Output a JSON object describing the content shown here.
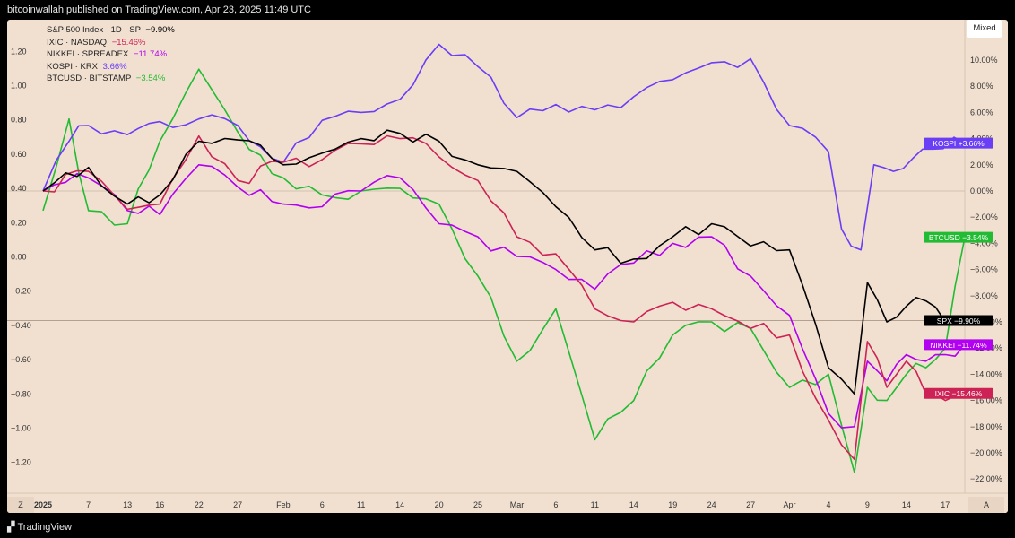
{
  "header": {
    "publisher": "bitcoinwallah published on TradingView.com, Apr 23, 2025 11:49 UTC"
  },
  "footer": {
    "brand": "TradingView"
  },
  "toolbar": {
    "mode": "Mixed",
    "z_label": "Z",
    "a_label": "A"
  },
  "chart_data": {
    "type": "line",
    "title": "",
    "background": "#f1e0d0",
    "x_tick_labels": [
      "2025",
      "7",
      "13",
      "16",
      "22",
      "27",
      "Feb",
      "6",
      "11",
      "14",
      "20",
      "25",
      "Mar",
      "6",
      "11",
      "14",
      "19",
      "24",
      "27",
      "Apr",
      "4",
      "9",
      "14",
      "17"
    ],
    "x_tick_index": [
      0,
      7,
      13,
      18,
      24,
      30,
      37,
      43,
      49,
      55,
      61,
      67,
      73,
      79,
      85,
      91,
      97,
      103,
      109,
      115,
      121,
      127,
      133,
      139
    ],
    "x_count": 143,
    "left_axis": {
      "ticks": [
        1.2,
        1.0,
        0.8,
        0.6,
        0.4,
        0.2,
        0.0,
        -0.2,
        -0.4,
        -0.6,
        -0.8,
        -1.0,
        -1.2
      ],
      "labels": [
        "1.20",
        "1.00",
        "0.80",
        "0.60",
        "0.40",
        "0.20",
        "0.00",
        "−0.20",
        "−0.40",
        "−0.60",
        "−0.80",
        "−1.00",
        "−1.20"
      ],
      "range": [
        -1.35,
        1.35
      ]
    },
    "right_axis": {
      "unit": "%",
      "ticks": [
        10,
        8,
        6,
        4,
        2,
        0,
        -2,
        -4,
        -6,
        -8,
        -10,
        -12,
        -14,
        -16,
        -18,
        -20,
        -22
      ],
      "labels": [
        "10.00%",
        "8.00%",
        "6.00%",
        "4.00%",
        "2.00%",
        "0.00%",
        "−2.00%",
        "−4.00%",
        "−6.00%",
        "−8.00%",
        "−10.00%",
        "−12.00%",
        "−14.00%",
        "−16.00%",
        "−18.00%",
        "−20.00%",
        "−22.00%"
      ]
    },
    "series": [
      {
        "name": "S&P 500 Index",
        "legend": "S&P 500 Index · 1D · SP",
        "change": "−9.90%",
        "tag": "SPX",
        "tag_value": "−9.90%",
        "color": "#000000",
        "points": [
          [
            0,
            0.0
          ],
          [
            7,
            1.8
          ],
          [
            13,
            -1.0
          ],
          [
            18,
            -0.3
          ],
          [
            24,
            3.8
          ],
          [
            30,
            3.9
          ],
          [
            37,
            2.0
          ],
          [
            43,
            2.9
          ],
          [
            49,
            4.0
          ],
          [
            55,
            4.4
          ],
          [
            61,
            3.8
          ],
          [
            67,
            2.0
          ],
          [
            73,
            1.5
          ],
          [
            79,
            -1.2
          ],
          [
            85,
            -4.5
          ],
          [
            91,
            -5.2
          ],
          [
            97,
            -3.5
          ],
          [
            103,
            -2.5
          ],
          [
            109,
            -4.2
          ],
          [
            115,
            -4.5
          ],
          [
            121,
            -13.5
          ],
          [
            125,
            -15.5
          ],
          [
            127,
            -7.0
          ],
          [
            130,
            -10.0
          ],
          [
            133,
            -8.8
          ],
          [
            136,
            -8.4
          ],
          [
            139,
            -10.0
          ],
          [
            142,
            -9.9
          ]
        ]
      },
      {
        "name": "IXIC",
        "legend": "IXIC · NASDAQ",
        "change": "−15.46%",
        "tag": "IXIC",
        "tag_value": "−15.46%",
        "color": "#cc2255",
        "points": [
          [
            0,
            0.0
          ],
          [
            7,
            1.5
          ],
          [
            13,
            -1.4
          ],
          [
            18,
            -1.0
          ],
          [
            24,
            4.2
          ],
          [
            30,
            0.8
          ],
          [
            37,
            2.2
          ],
          [
            43,
            2.4
          ],
          [
            49,
            3.6
          ],
          [
            55,
            4.0
          ],
          [
            61,
            2.6
          ],
          [
            67,
            0.8
          ],
          [
            73,
            -3.5
          ],
          [
            79,
            -4.8
          ],
          [
            85,
            -9.0
          ],
          [
            91,
            -10.0
          ],
          [
            97,
            -8.5
          ],
          [
            103,
            -9.0
          ],
          [
            109,
            -10.5
          ],
          [
            115,
            -11.0
          ],
          [
            121,
            -17.5
          ],
          [
            125,
            -20.5
          ],
          [
            127,
            -11.5
          ],
          [
            130,
            -15.0
          ],
          [
            133,
            -13.0
          ],
          [
            136,
            -15.5
          ],
          [
            139,
            -16.0
          ],
          [
            142,
            -15.46
          ]
        ]
      },
      {
        "name": "NIKKEI",
        "legend": "NIKKEI · SPREADEX",
        "change": "−11.74%",
        "tag": "NIKKEI",
        "tag_value": "−11.74%",
        "color": "#b200f0",
        "points": [
          [
            0,
            0.0
          ],
          [
            7,
            1.0
          ],
          [
            13,
            -1.5
          ],
          [
            18,
            -1.8
          ],
          [
            24,
            2.0
          ],
          [
            30,
            0.3
          ],
          [
            37,
            -1.0
          ],
          [
            43,
            -1.2
          ],
          [
            49,
            0.0
          ],
          [
            55,
            1.0
          ],
          [
            61,
            -2.5
          ],
          [
            67,
            -3.5
          ],
          [
            73,
            -5.0
          ],
          [
            79,
            -6.0
          ],
          [
            85,
            -7.5
          ],
          [
            91,
            -5.5
          ],
          [
            97,
            -4.0
          ],
          [
            103,
            -3.5
          ],
          [
            109,
            -6.5
          ],
          [
            115,
            -9.5
          ],
          [
            121,
            -17.0
          ],
          [
            125,
            -18.0
          ],
          [
            127,
            -13.0
          ],
          [
            130,
            -14.5
          ],
          [
            133,
            -12.5
          ],
          [
            136,
            -13.0
          ],
          [
            139,
            -12.5
          ],
          [
            142,
            -11.74
          ]
        ]
      },
      {
        "name": "KOSPI",
        "legend": "KOSPI · KRX",
        "change": "3.66%",
        "tag": "KOSPI",
        "tag_value": "+3.66%",
        "color": "#6a3ef5",
        "points": [
          [
            0,
            0.0
          ],
          [
            4,
            3.8
          ],
          [
            7,
            5.0
          ],
          [
            13,
            4.3
          ],
          [
            18,
            5.3
          ],
          [
            24,
            5.5
          ],
          [
            30,
            5.0
          ],
          [
            37,
            2.2
          ],
          [
            43,
            5.4
          ],
          [
            49,
            6.0
          ],
          [
            55,
            7.0
          ],
          [
            61,
            11.2
          ],
          [
            67,
            9.5
          ],
          [
            73,
            5.6
          ],
          [
            79,
            6.6
          ],
          [
            85,
            6.2
          ],
          [
            91,
            7.2
          ],
          [
            97,
            8.5
          ],
          [
            103,
            9.8
          ],
          [
            109,
            10.1
          ],
          [
            115,
            5.0
          ],
          [
            121,
            3.0
          ],
          [
            123,
            -2.9
          ],
          [
            126,
            -4.5
          ],
          [
            128,
            2.0
          ],
          [
            131,
            1.5
          ],
          [
            134,
            2.5
          ],
          [
            137,
            3.2
          ],
          [
            142,
            3.66
          ]
        ]
      },
      {
        "name": "BTCUSD",
        "legend": "BTCUSD · BITSTAMP",
        "change": "−3.54%",
        "tag": "BTCUSD",
        "tag_value": "−3.54%",
        "color": "#22bb33",
        "points": [
          [
            0,
            -1.5
          ],
          [
            4,
            5.5
          ],
          [
            7,
            -1.5
          ],
          [
            13,
            -2.5
          ],
          [
            18,
            3.8
          ],
          [
            24,
            9.3
          ],
          [
            30,
            4.5
          ],
          [
            37,
            1.0
          ],
          [
            43,
            -0.3
          ],
          [
            49,
            0.0
          ],
          [
            55,
            0.2
          ],
          [
            61,
            -1.0
          ],
          [
            67,
            -6.5
          ],
          [
            73,
            -13.0
          ],
          [
            79,
            -9.0
          ],
          [
            85,
            -19.0
          ],
          [
            91,
            -16.0
          ],
          [
            97,
            -11.0
          ],
          [
            103,
            -10.0
          ],
          [
            109,
            -10.5
          ],
          [
            115,
            -15.0
          ],
          [
            121,
            -14.0
          ],
          [
            125,
            -21.5
          ],
          [
            127,
            -15.0
          ],
          [
            130,
            -16.0
          ],
          [
            133,
            -14.0
          ],
          [
            136,
            -13.5
          ],
          [
            139,
            -12.0
          ],
          [
            142,
            -3.54
          ]
        ]
      }
    ],
    "spx_crosshair_value": -9.9
  }
}
